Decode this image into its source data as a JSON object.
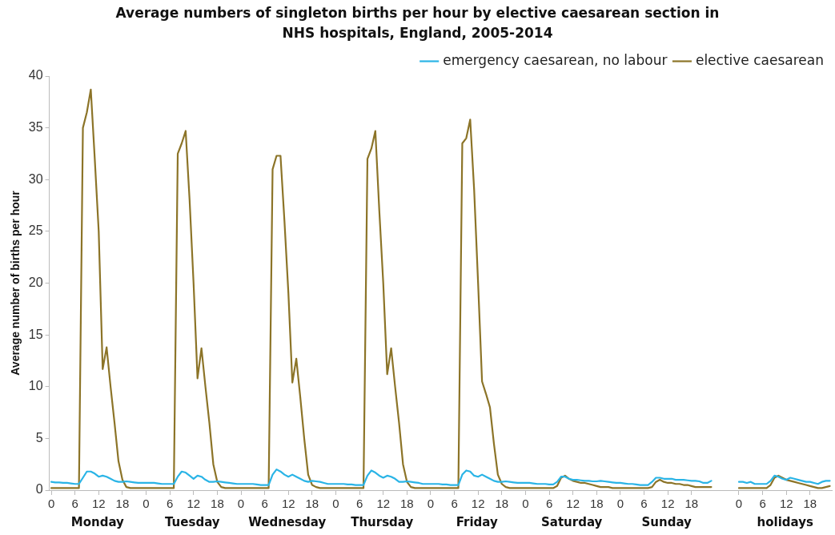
{
  "chart_data": {
    "type": "line",
    "title": "Average numbers of singleton births per hour by elective caesarean section in NHS hospitals, England, 2005-2014",
    "ylabel": "Average number of births per hour",
    "categories": [
      "0",
      null,
      null,
      null,
      null,
      null,
      "6",
      null,
      null,
      null,
      null,
      null,
      "12",
      null,
      null,
      null,
      null,
      null,
      "18",
      null,
      null,
      null,
      null,
      null,
      "0",
      null,
      null,
      null,
      null,
      null,
      "6",
      null,
      null,
      null,
      null,
      null,
      "12",
      null,
      null,
      null,
      null,
      null,
      "18",
      null,
      null,
      null,
      null,
      null,
      "0",
      null,
      null,
      null,
      null,
      null,
      "6",
      null,
      null,
      null,
      null,
      null,
      "12",
      null,
      null,
      null,
      null,
      null,
      "18",
      null,
      null,
      null,
      null,
      null,
      "0",
      null,
      null,
      null,
      null,
      null,
      "6",
      null,
      null,
      null,
      null,
      null,
      "12",
      null,
      null,
      null,
      null,
      null,
      "18",
      null,
      null,
      null,
      null,
      null,
      "0",
      null,
      null,
      null,
      null,
      null,
      "6",
      null,
      null,
      null,
      null,
      null,
      "12",
      null,
      null,
      null,
      null,
      null,
      "18",
      null,
      null,
      null,
      null,
      null,
      "0",
      null,
      null,
      null,
      null,
      null,
      "6",
      null,
      null,
      null,
      null,
      null,
      "12",
      null,
      null,
      null,
      null,
      null,
      "18",
      null,
      null,
      null,
      null,
      null,
      "0",
      null,
      null,
      null,
      null,
      null,
      "6",
      null,
      null,
      null,
      null,
      null,
      "12",
      null,
      null,
      null,
      null,
      null,
      "18",
      null,
      null,
      null,
      null,
      null,
      null,
      null,
      null,
      null,
      null,
      null,
      "0",
      null,
      null,
      null,
      null,
      null,
      "6",
      null,
      null,
      null,
      null,
      null,
      "12",
      null,
      null,
      null,
      null,
      null,
      "18",
      null,
      null,
      null,
      null,
      null
    ],
    "series": [
      {
        "name": "emergency caesarean, no labour",
        "color": "#2ab4e6",
        "values": [
          0.8,
          0.75,
          0.75,
          0.7,
          0.7,
          0.65,
          0.6,
          0.6,
          1.2,
          1.8,
          1.8,
          1.6,
          1.3,
          1.4,
          1.3,
          1.1,
          0.9,
          0.8,
          0.8,
          0.85,
          0.8,
          0.75,
          0.7,
          0.7,
          0.7,
          0.7,
          0.7,
          0.65,
          0.6,
          0.6,
          0.6,
          0.6,
          1.3,
          1.8,
          1.7,
          1.4,
          1.1,
          1.4,
          1.3,
          1.0,
          0.8,
          0.8,
          0.85,
          0.8,
          0.75,
          0.7,
          0.65,
          0.6,
          0.6,
          0.6,
          0.6,
          0.6,
          0.55,
          0.5,
          0.5,
          0.5,
          1.5,
          2.0,
          1.8,
          1.5,
          1.3,
          1.5,
          1.3,
          1.1,
          0.9,
          0.8,
          0.9,
          0.85,
          0.8,
          0.7,
          0.6,
          0.6,
          0.6,
          0.6,
          0.6,
          0.55,
          0.55,
          0.5,
          0.5,
          0.5,
          1.4,
          1.9,
          1.7,
          1.4,
          1.2,
          1.4,
          1.3,
          1.1,
          0.8,
          0.8,
          0.85,
          0.8,
          0.75,
          0.7,
          0.6,
          0.6,
          0.6,
          0.6,
          0.6,
          0.55,
          0.55,
          0.5,
          0.5,
          0.5,
          1.5,
          1.9,
          1.8,
          1.4,
          1.3,
          1.5,
          1.3,
          1.1,
          0.9,
          0.8,
          0.8,
          0.85,
          0.8,
          0.75,
          0.7,
          0.7,
          0.7,
          0.7,
          0.65,
          0.6,
          0.6,
          0.6,
          0.55,
          0.55,
          0.8,
          1.3,
          1.3,
          1.1,
          1.0,
          1.0,
          0.95,
          0.9,
          0.9,
          0.85,
          0.85,
          0.9,
          0.85,
          0.8,
          0.75,
          0.7,
          0.7,
          0.65,
          0.6,
          0.6,
          0.55,
          0.5,
          0.5,
          0.5,
          0.8,
          1.2,
          1.2,
          1.1,
          1.1,
          1.1,
          1.0,
          1.0,
          1.0,
          0.95,
          0.9,
          0.9,
          0.85,
          0.7,
          0.7,
          0.9,
          null,
          null,
          null,
          null,
          null,
          null,
          0.8,
          0.8,
          0.7,
          0.8,
          0.6,
          0.6,
          0.6,
          0.6,
          0.9,
          1.4,
          1.3,
          1.1,
          1.0,
          1.2,
          1.1,
          1.0,
          0.9,
          0.8,
          0.8,
          0.7,
          0.6,
          0.8,
          0.9,
          0.9
        ]
      },
      {
        "name": "elective caesarean",
        "color": "#8c7428",
        "values": [
          0.2,
          0.2,
          0.2,
          0.2,
          0.2,
          0.2,
          0.2,
          0.2,
          35,
          36.5,
          38.7,
          32,
          25,
          11.7,
          13.8,
          10,
          6.5,
          2.8,
          1,
          0.3,
          0.2,
          0.2,
          0.2,
          0.2,
          0.2,
          0.2,
          0.2,
          0.2,
          0.2,
          0.2,
          0.2,
          0.2,
          32.5,
          33.5,
          34.7,
          28,
          20,
          10.8,
          13.7,
          10,
          6.5,
          2.5,
          0.8,
          0.3,
          0.2,
          0.2,
          0.2,
          0.2,
          0.2,
          0.2,
          0.2,
          0.2,
          0.2,
          0.2,
          0.2,
          0.2,
          31,
          32.3,
          32.3,
          26,
          19,
          10.4,
          12.7,
          9,
          5,
          1.5,
          0.5,
          0.3,
          0.2,
          0.2,
          0.2,
          0.2,
          0.2,
          0.2,
          0.2,
          0.2,
          0.2,
          0.2,
          0.2,
          0.2,
          32,
          33,
          34.7,
          27,
          20,
          11.2,
          13.7,
          10,
          6.5,
          2.5,
          0.8,
          0.3,
          0.2,
          0.2,
          0.2,
          0.2,
          0.2,
          0.2,
          0.2,
          0.2,
          0.2,
          0.2,
          0.2,
          0.2,
          33.5,
          34,
          35.8,
          29,
          20,
          10.5,
          9.3,
          8,
          4.5,
          1.5,
          0.6,
          0.3,
          0.2,
          0.2,
          0.2,
          0.2,
          0.2,
          0.2,
          0.2,
          0.2,
          0.2,
          0.2,
          0.2,
          0.2,
          0.4,
          1.2,
          1.4,
          1.1,
          0.9,
          0.8,
          0.7,
          0.7,
          0.6,
          0.5,
          0.4,
          0.3,
          0.3,
          0.3,
          0.2,
          0.2,
          0.2,
          0.2,
          0.2,
          0.2,
          0.2,
          0.2,
          0.2,
          0.2,
          0.3,
          0.8,
          1.0,
          0.8,
          0.7,
          0.7,
          0.6,
          0.6,
          0.5,
          0.5,
          0.4,
          0.3,
          0.3,
          0.3,
          0.3,
          0.3,
          null,
          null,
          null,
          null,
          null,
          null,
          0.2,
          0.2,
          0.2,
          0.2,
          0.2,
          0.2,
          0.2,
          0.2,
          0.5,
          1.2,
          1.4,
          1.2,
          1.0,
          0.9,
          0.8,
          0.7,
          0.6,
          0.5,
          0.4,
          0.3,
          0.2,
          0.2,
          0.3,
          0.4
        ]
      }
    ],
    "ylim": [
      0,
      40
    ],
    "yticks": [
      0,
      5,
      10,
      15,
      20,
      25,
      30,
      35,
      40
    ],
    "annotations": [
      "Monday",
      "Tuesday",
      "Wednesday",
      "Thursday",
      "Friday",
      "Saturday",
      "Sunday",
      "holidays"
    ],
    "legend": "top right",
    "grid": false,
    "marker": "none",
    "line_style": "solid"
  }
}
